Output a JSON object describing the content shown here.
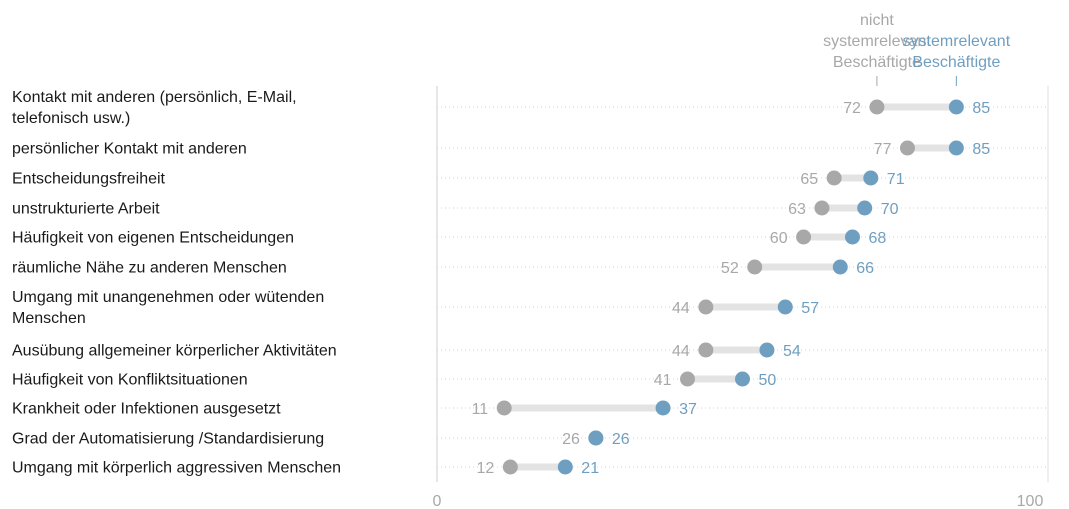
{
  "chart_data": {
    "type": "dumbbell",
    "series": [
      {
        "name": "nicht systemrelevant Beschäftigte",
        "color": "#a8a8a8",
        "values": [
          72,
          77,
          65,
          63,
          60,
          52,
          44,
          44,
          41,
          11,
          26,
          12
        ]
      },
      {
        "name": "systemrelevant Beschäftigte",
        "color": "#6f9fc0",
        "values": [
          85,
          85,
          71,
          70,
          68,
          66,
          57,
          54,
          50,
          37,
          26,
          21
        ]
      }
    ],
    "legend_lines": [
      [
        "nicht",
        "systemrelevant",
        "Beschäftigte"
      ],
      [
        "systemrelevant",
        "Beschäftigte"
      ]
    ],
    "categories": [
      "Kontakt mit anderen (persönlich, E-Mail, telefonisch usw.)",
      "persönlicher Kontakt mit anderen",
      "Entscheidungsfreiheit",
      "unstrukturierte Arbeit",
      "Häufigkeit von eigenen Entscheidungen",
      "räumliche Nähe zu anderen Menschen",
      "Umgang mit unangenehmen oder wütenden Menschen",
      "Ausübung allgemeiner körperlicher Aktivitäten",
      "Häufigkeit von Konfliktsituationen",
      "Krankheit oder Infektionen ausgesetzt",
      "Grad der Automatisierung /Standardisierung",
      "Umgang mit körperlich aggressiven Menschen"
    ],
    "category_label_lines": [
      [
        "Kontakt mit anderen (persönlich, E-Mail,",
        "telefonisch usw.)"
      ],
      [
        "persönlicher Kontakt mit anderen"
      ],
      [
        "Entscheidungsfreiheit"
      ],
      [
        "unstrukturierte Arbeit"
      ],
      [
        "Häufigkeit von eigenen Entscheidungen"
      ],
      [
        "räumliche Nähe zu anderen Menschen"
      ],
      [
        "Umgang mit unangenehmen oder wütenden",
        "Menschen"
      ],
      [
        "Ausübung allgemeiner körperlicher Aktivitäten"
      ],
      [
        "Häufigkeit von Konfliktsituationen"
      ],
      [
        "Krankheit oder Infektionen ausgesetzt"
      ],
      [
        "Grad der Automatisierung /Standardisierung"
      ],
      [
        "Umgang mit körperlich aggressiven Menschen"
      ]
    ],
    "xlim": [
      0,
      100
    ],
    "xticks": [
      "0",
      "100"
    ],
    "grid": true
  }
}
